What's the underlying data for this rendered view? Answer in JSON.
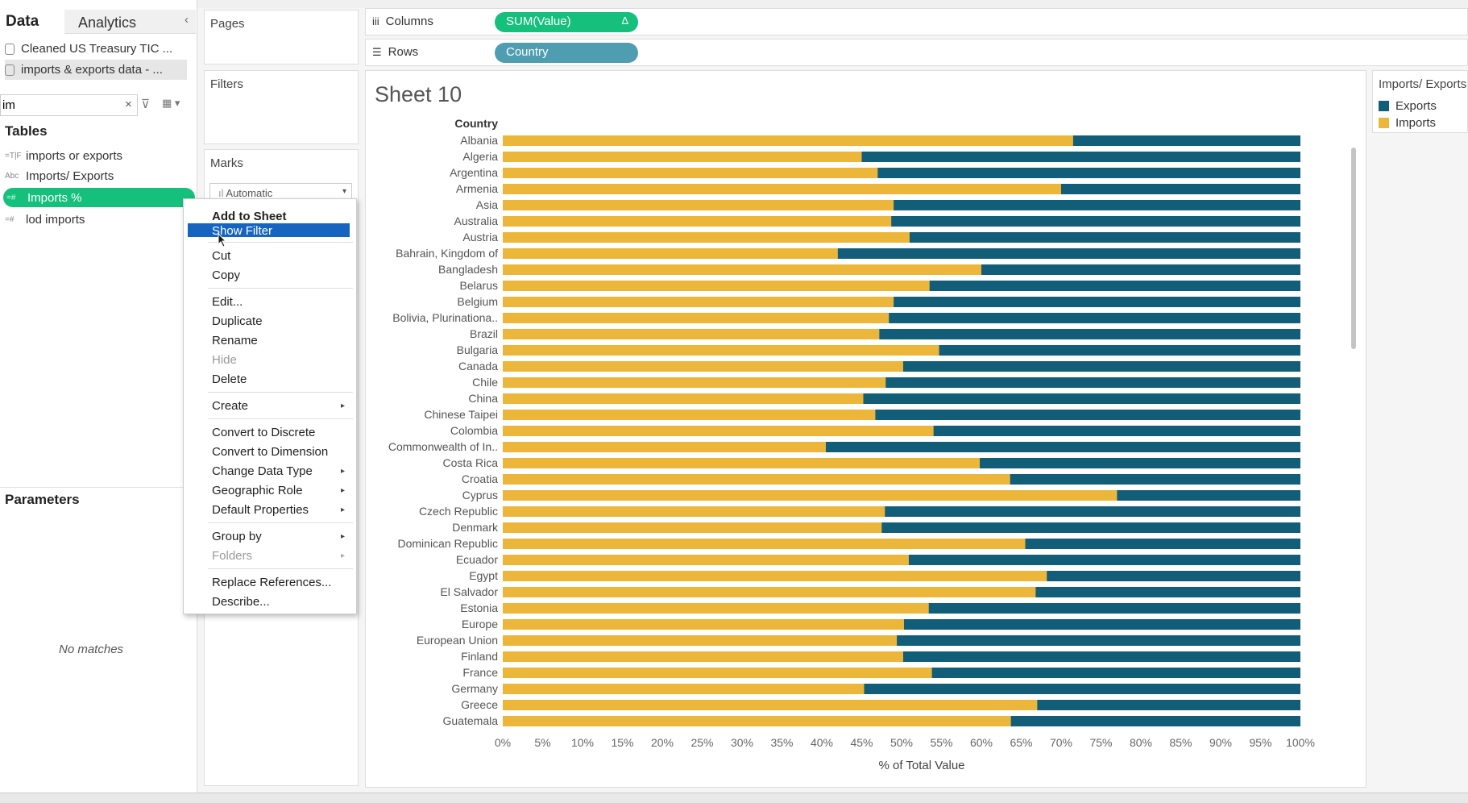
{
  "data_pane": {
    "tab_data": "Data",
    "tab_analytics": "Analytics",
    "datasources": [
      "Cleaned US Treasury TIC ...",
      "imports & exports data - ..."
    ],
    "search_value": "im",
    "tables_title": "Tables",
    "fields": [
      {
        "type": "=T|F",
        "label": "imports or exports"
      },
      {
        "type": "Abc",
        "label": "Imports/ Exports"
      },
      {
        "type": "=#",
        "label": "Imports %"
      },
      {
        "type": "=#",
        "label": "lod imports"
      }
    ],
    "parameters_title": "Parameters",
    "no_matches": "No matches"
  },
  "shelves": {
    "pages": "Pages",
    "filters": "Filters",
    "marks": "Marks",
    "marks_type": "Automatic",
    "columns_label": "Columns",
    "columns_pill": "SUM(Value)",
    "columns_pill_delta": "Δ",
    "rows_label": "Rows",
    "rows_pill": "Country"
  },
  "context_menu": {
    "items": [
      "Add to Sheet",
      "Show Filter",
      "Cut",
      "Copy",
      "Edit...",
      "Duplicate",
      "Rename",
      "Hide",
      "Delete",
      "Create",
      "Convert to Discrete",
      "Convert to Dimension",
      "Change Data Type",
      "Geographic Role",
      "Default Properties",
      "Group by",
      "Folders",
      "Replace References...",
      "Describe..."
    ]
  },
  "sheet": {
    "title": "Sheet 10"
  },
  "legend": {
    "title": "Imports/ Exports",
    "items": [
      {
        "label": "Exports",
        "color": "#125e78"
      },
      {
        "label": "Imports",
        "color": "#ecb63a"
      }
    ]
  },
  "chart_data": {
    "type": "bar",
    "orientation": "horizontal-stacked-100",
    "row_header": "Country",
    "xlabel": "% of Total Value",
    "xlim": [
      0,
      100
    ],
    "x_ticks": [
      "0%",
      "5%",
      "10%",
      "15%",
      "20%",
      "25%",
      "30%",
      "35%",
      "40%",
      "45%",
      "50%",
      "55%",
      "60%",
      "65%",
      "70%",
      "75%",
      "80%",
      "85%",
      "90%",
      "95%",
      "100%"
    ],
    "categories": [
      "Albania",
      "Algeria",
      "Argentina",
      "Armenia",
      "Asia",
      "Australia",
      "Austria",
      "Bahrain, Kingdom of",
      "Bangladesh",
      "Belarus",
      "Belgium",
      "Bolivia, Plurinationa..",
      "Brazil",
      "Bulgaria",
      "Canada",
      "Chile",
      "China",
      "Chinese Taipei",
      "Colombia",
      "Commonwealth of In..",
      "Costa Rica",
      "Croatia",
      "Cyprus",
      "Czech Republic",
      "Denmark",
      "Dominican Republic",
      "Ecuador",
      "Egypt",
      "El Salvador",
      "Estonia",
      "Europe",
      "European Union",
      "Finland",
      "France",
      "Germany",
      "Greece",
      "Guatemala"
    ],
    "series": [
      {
        "name": "Imports",
        "color": "#ecb63a",
        "values": [
          71.5,
          45.0,
          47.0,
          70.0,
          49.0,
          48.7,
          51.0,
          42.0,
          60.0,
          53.5,
          49.0,
          48.4,
          47.2,
          54.7,
          50.2,
          48.0,
          45.2,
          46.7,
          54.0,
          40.5,
          59.8,
          63.6,
          77.0,
          47.9,
          47.5,
          65.5,
          50.9,
          68.2,
          66.8,
          53.4,
          50.3,
          49.4,
          50.2,
          53.8,
          45.3,
          67.0,
          63.7
        ]
      },
      {
        "name": "Exports",
        "color": "#125e78",
        "values": [
          28.5,
          55.0,
          53.0,
          30.0,
          51.0,
          51.3,
          49.0,
          58.0,
          40.0,
          46.5,
          51.0,
          51.6,
          52.8,
          45.3,
          49.8,
          52.0,
          54.8,
          53.3,
          46.0,
          59.5,
          40.2,
          36.4,
          23.0,
          52.1,
          52.5,
          34.5,
          49.1,
          31.8,
          33.2,
          46.6,
          49.7,
          50.6,
          49.8,
          46.2,
          54.7,
          33.0,
          36.3
        ]
      }
    ]
  }
}
